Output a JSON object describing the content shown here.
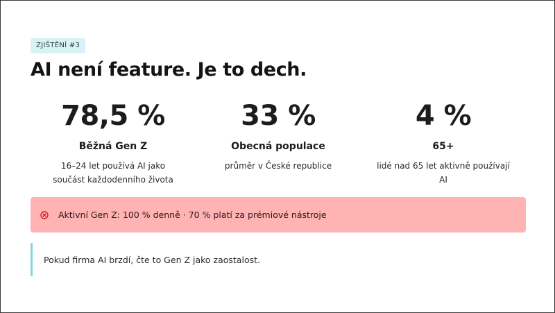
{
  "slide": {
    "tag": "ZJIŠTĚNÍ #3",
    "title": "AI není feature. Je to dech.",
    "stats": [
      {
        "value": "78,5 %",
        "label": "Běžná Gen Z",
        "desc": "16–24 let používá AI jako součást každodenního života"
      },
      {
        "value": "33 %",
        "label": "Obecná populace",
        "desc": "průměr v České republice"
      },
      {
        "value": "4 %",
        "label": "65+",
        "desc": "lidé nad 65 let aktivně používají AI"
      }
    ],
    "alert": {
      "icon": "x-circle-icon",
      "text": "Aktivní Gen Z: 100 % denně · 70 % platí za prémiové nástroje"
    },
    "quote": {
      "text": "Pokud firma AI brzdí, čte to Gen Z jako zaostalost."
    }
  },
  "colors": {
    "tag_bg": "#d6f3f5",
    "alert_bg": "#ffb3b3",
    "alert_icon": "#d11a2a",
    "quote_border": "#7fd7dc",
    "text": "#1c1c1c"
  }
}
